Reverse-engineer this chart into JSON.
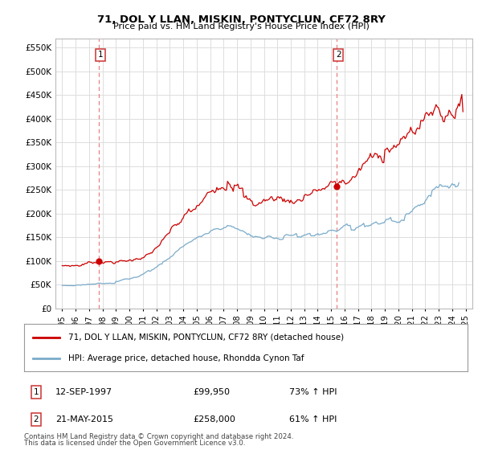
{
  "title": "71, DOL Y LLAN, MISKIN, PONTYCLUN, CF72 8RY",
  "subtitle": "Price paid vs. HM Land Registry's House Price Index (HPI)",
  "xlim": [
    1994.5,
    2025.5
  ],
  "ylim": [
    0,
    570000
  ],
  "yticks": [
    0,
    50000,
    100000,
    150000,
    200000,
    250000,
    300000,
    350000,
    400000,
    450000,
    500000,
    550000
  ],
  "ytick_labels": [
    "£0",
    "£50K",
    "£100K",
    "£150K",
    "£200K",
    "£250K",
    "£300K",
    "£350K",
    "£400K",
    "£450K",
    "£500K",
    "£550K"
  ],
  "xtick_years": [
    1995,
    1996,
    1997,
    1998,
    1999,
    2000,
    2001,
    2002,
    2003,
    2004,
    2005,
    2006,
    2007,
    2008,
    2009,
    2010,
    2011,
    2012,
    2013,
    2014,
    2015,
    2016,
    2017,
    2018,
    2019,
    2020,
    2021,
    2022,
    2023,
    2024,
    2025
  ],
  "sale1_x": 1997.7,
  "sale1_y": 99950,
  "sale1_label": "1",
  "sale1_date": "12-SEP-1997",
  "sale1_price": "£99,950",
  "sale1_hpi": "73% ↑ HPI",
  "sale2_x": 2015.39,
  "sale2_y": 258000,
  "sale2_label": "2",
  "sale2_date": "21-MAY-2015",
  "sale2_price": "£258,000",
  "sale2_hpi": "61% ↑ HPI",
  "line1_color": "#cc0000",
  "line2_color": "#7aabca",
  "vline_color": "#e88080",
  "dot_color": "#cc0000",
  "legend1_label": "71, DOL Y LLAN, MISKIN, PONTYCLUN, CF72 8RY (detached house)",
  "legend2_label": "HPI: Average price, detached house, Rhondda Cynon Taf",
  "footer1": "Contains HM Land Registry data © Crown copyright and database right 2024.",
  "footer2": "This data is licensed under the Open Government Licence v3.0.",
  "background_color": "#ffffff",
  "grid_color": "#dddddd",
  "box_edge_color": "#cc3333"
}
